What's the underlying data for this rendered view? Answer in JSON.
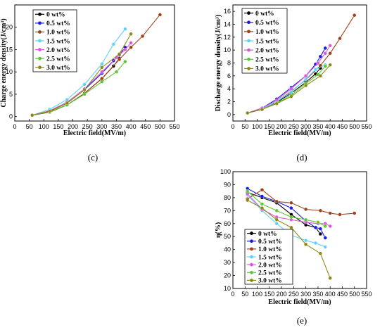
{
  "colors": {
    "0 wt%": "#000000",
    "0.5 wt%": "#1a1adf",
    "1.0 wt%": "#a0401a",
    "1.5 wt%": "#5fd3f5",
    "2.0 wt%": "#d858d8",
    "2.5 wt%": "#5ec832",
    "3.0 wt%": "#8c8a14"
  },
  "chart_data": [
    {
      "type": "line",
      "panel_label": "(c)",
      "xlabel": "Electric field(MV/m)",
      "ylabel": "Charge energy density(J/cm³)",
      "xlim": [
        0,
        550
      ],
      "ylim": [
        -1,
        25
      ],
      "xticks": [
        0,
        50,
        100,
        150,
        200,
        250,
        300,
        350,
        400,
        450,
        500,
        550
      ],
      "yticks": [
        0,
        5,
        10,
        15,
        20
      ],
      "legend_position": "top-left",
      "series": [
        {
          "name": "0 wt%",
          "x": [
            60,
            120,
            180,
            240,
            300,
            340,
            360
          ],
          "y": [
            0.3,
            1.0,
            2.6,
            5.2,
            8.5,
            11.3,
            13.0
          ]
        },
        {
          "name": "0.5 wt%",
          "x": [
            60,
            120,
            180,
            240,
            300,
            340,
            360,
            380
          ],
          "y": [
            0.3,
            1.2,
            3.0,
            6.0,
            9.7,
            12.5,
            13.8,
            15.5
          ]
        },
        {
          "name": "1.0 wt%",
          "x": [
            60,
            120,
            180,
            240,
            300,
            360,
            400,
            440,
            500
          ],
          "y": [
            0.3,
            1.0,
            2.6,
            5.2,
            8.5,
            12.8,
            15.5,
            18.0,
            22.8
          ]
        },
        {
          "name": "1.5 wt%",
          "x": [
            60,
            120,
            180,
            240,
            300,
            340,
            380
          ],
          "y": [
            0.3,
            1.6,
            3.8,
            7.2,
            11.8,
            16.2,
            19.6
          ]
        },
        {
          "name": "2.0 wt%",
          "x": [
            60,
            120,
            180,
            240,
            300,
            350,
            380,
            400
          ],
          "y": [
            0.3,
            1.3,
            3.2,
            6.2,
            10.0,
            13.2,
            15.0,
            16.5
          ]
        },
        {
          "name": "2.5 wt%",
          "x": [
            60,
            120,
            180,
            240,
            300,
            350,
            380
          ],
          "y": [
            0.3,
            1.1,
            2.6,
            5.0,
            7.8,
            10.0,
            12.3
          ]
        },
        {
          "name": "3.0 wt%",
          "x": [
            60,
            120,
            180,
            240,
            300,
            360,
            400
          ],
          "y": [
            0.3,
            1.2,
            3.0,
            6.0,
            11.0,
            14.0,
            18.5
          ]
        }
      ]
    },
    {
      "type": "line",
      "panel_label": "(d)",
      "xlabel": "Electric field(MV/m)",
      "ylabel": "Discharge energy density(J/cm³)",
      "xlim": [
        0,
        550
      ],
      "ylim": [
        -1,
        17
      ],
      "xticks": [
        0,
        50,
        100,
        150,
        200,
        250,
        300,
        350,
        400,
        450,
        500,
        550
      ],
      "yticks": [
        0,
        2,
        4,
        6,
        8,
        10,
        12,
        14,
        16
      ],
      "legend_position": "top-left",
      "series": [
        {
          "name": "0 wt%",
          "x": [
            60,
            120,
            180,
            240,
            300,
            340,
            360
          ],
          "y": [
            0.25,
            0.8,
            1.9,
            3.3,
            5.0,
            6.3,
            7.2
          ]
        },
        {
          "name": "0.5 wt%",
          "x": [
            60,
            120,
            180,
            240,
            300,
            340,
            360,
            380
          ],
          "y": [
            0.25,
            1.0,
            2.4,
            4.2,
            6.0,
            7.8,
            9.0,
            10.3
          ]
        },
        {
          "name": "1.0 wt%",
          "x": [
            60,
            120,
            180,
            240,
            300,
            360,
            400,
            440,
            500
          ],
          "y": [
            0.25,
            0.8,
            2.0,
            3.6,
            5.4,
            7.6,
            9.5,
            11.8,
            15.4
          ]
        },
        {
          "name": "1.5 wt%",
          "x": [
            60,
            120,
            180,
            240,
            300,
            340,
            380
          ],
          "y": [
            0.25,
            0.9,
            2.0,
            3.5,
            5.5,
            7.0,
            7.7
          ]
        },
        {
          "name": "2.0 wt%",
          "x": [
            60,
            120,
            180,
            240,
            300,
            350,
            380,
            400
          ],
          "y": [
            0.25,
            1.0,
            2.2,
            4.0,
            6.0,
            8.0,
            9.5,
            10.7
          ]
        },
        {
          "name": "2.5 wt%",
          "x": [
            60,
            120,
            180,
            240,
            300,
            350,
            380
          ],
          "y": [
            0.25,
            0.8,
            1.8,
            3.0,
            4.8,
            6.2,
            7.5
          ]
        },
        {
          "name": "3.0 wt%",
          "x": [
            60,
            120,
            180,
            240,
            300,
            360,
            400
          ],
          "y": [
            0.25,
            0.8,
            1.7,
            2.8,
            4.5,
            6.0,
            7.7
          ]
        }
      ]
    },
    {
      "type": "line",
      "panel_label": "(e)",
      "xlabel": "Electric field(MV/m)",
      "ylabel": "η(%)",
      "xlim": [
        0,
        550
      ],
      "ylim": [
        10,
        100
      ],
      "xticks": [
        0,
        50,
        100,
        150,
        200,
        250,
        300,
        350,
        400,
        450,
        500,
        550
      ],
      "yticks": [
        10,
        20,
        30,
        40,
        50,
        60,
        70,
        80,
        90,
        100
      ],
      "legend_position": "bottom-left",
      "series": [
        {
          "name": "0 wt%",
          "x": [
            60,
            120,
            180,
            240,
            300,
            340,
            360
          ],
          "y": [
            84,
            80,
            76,
            67,
            59,
            57,
            52
          ]
        },
        {
          "name": "0.5 wt%",
          "x": [
            60,
            120,
            180,
            240,
            300,
            340,
            360,
            380
          ],
          "y": [
            87,
            81,
            77,
            72,
            62,
            57,
            56,
            49
          ]
        },
        {
          "name": "1.0 wt%",
          "x": [
            60,
            120,
            180,
            240,
            300,
            360,
            400,
            440,
            500
          ],
          "y": [
            79,
            86,
            77,
            76,
            71,
            70,
            68,
            67,
            68
          ]
        },
        {
          "name": "1.5 wt%",
          "x": [
            60,
            120,
            180,
            240,
            300,
            340,
            380
          ],
          "y": [
            82,
            70,
            60,
            51,
            47,
            45,
            42
          ]
        },
        {
          "name": "2.0 wt%",
          "x": [
            60,
            120,
            180,
            240,
            300,
            350,
            380,
            400
          ],
          "y": [
            83,
            71,
            65,
            63,
            61,
            60,
            60,
            58
          ]
        },
        {
          "name": "2.5 wt%",
          "x": [
            60,
            120,
            180,
            240,
            300,
            350,
            380
          ],
          "y": [
            85,
            75,
            70,
            65,
            63,
            61,
            58
          ]
        },
        {
          "name": "3.0 wt%",
          "x": [
            60,
            120,
            180,
            240,
            300,
            360,
            400
          ],
          "y": [
            78,
            72,
            63,
            57,
            44,
            37,
            18
          ]
        }
      ]
    }
  ]
}
